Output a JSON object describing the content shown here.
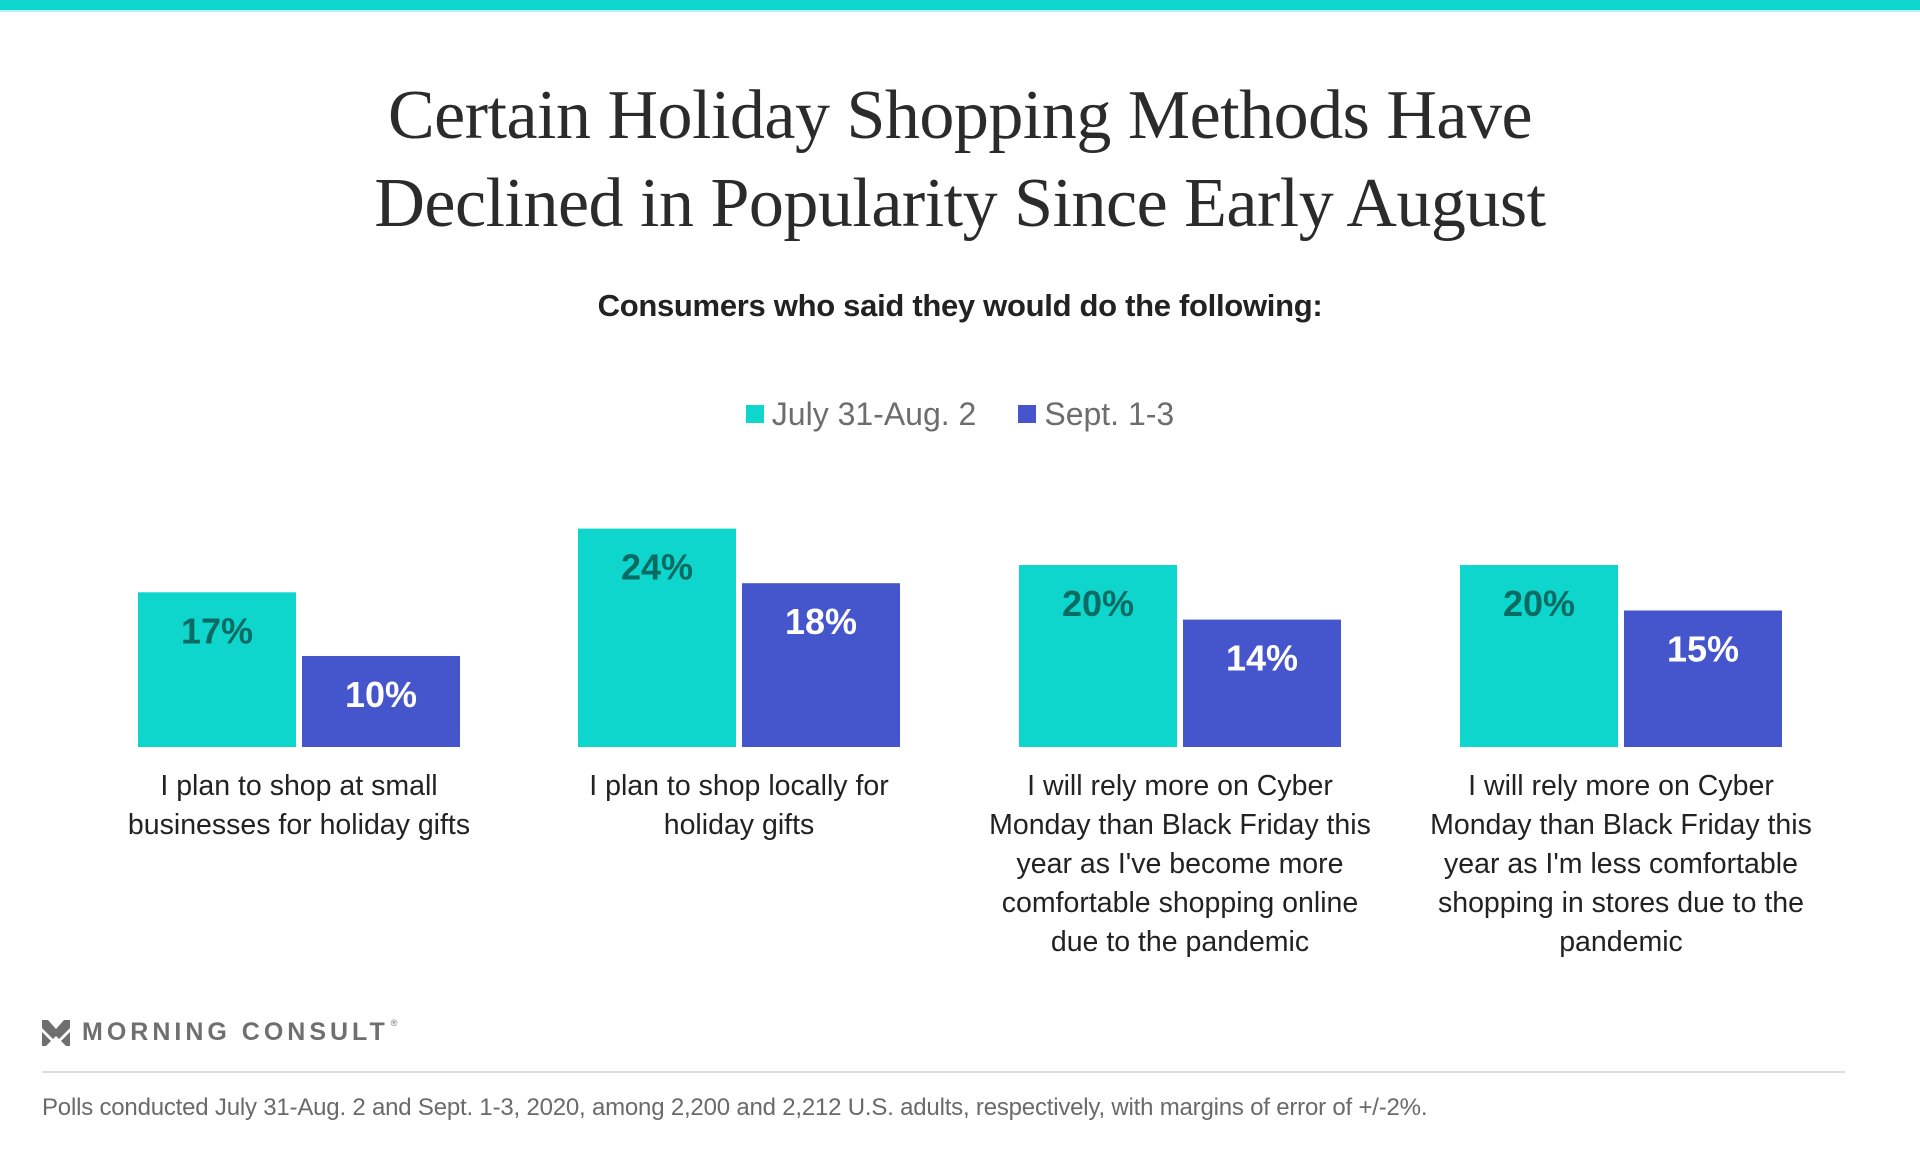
{
  "colors": {
    "accent_top_bar": "#0fd6cc",
    "series_1": "#0fd6cc",
    "series_2": "#4556cc",
    "label_on_series_1": "#0a6b63",
    "label_on_series_2": "#ffffff"
  },
  "header": {
    "title_line_1": "Certain Holiday Shopping Methods Have",
    "title_line_2": "Declined in Popularity Since Early August",
    "subtitle": "Consumers who said they would do the following:"
  },
  "legend": [
    {
      "label": "July 31-Aug. 2",
      "color": "#0fd6cc"
    },
    {
      "label": "Sept. 1-3",
      "color": "#4556cc"
    }
  ],
  "chart_data": {
    "type": "bar",
    "title": "Certain Holiday Shopping Methods Have Declined in Popularity Since Early August",
    "subtitle": "Consumers who said they would do the following:",
    "xlabel": "",
    "ylabel": "",
    "ylim": [
      0,
      24
    ],
    "grid": false,
    "legend_position": "top-center",
    "unit": "%",
    "categories": [
      [
        "I plan to shop at small",
        "businesses for holiday gifts"
      ],
      [
        "I plan to shop locally for",
        "holiday gifts"
      ],
      [
        "I will rely more on Cyber",
        "Monday than Black Friday this",
        "year as I've become more",
        "comfortable shopping online",
        "due to the pandemic"
      ],
      [
        "I will rely more on Cyber",
        "Monday than Black Friday this",
        "year as I'm less comfortable",
        "shopping in stores due to the",
        "pandemic"
      ]
    ],
    "series": [
      {
        "name": "July 31-Aug. 2",
        "values": [
          17,
          24,
          20,
          20
        ],
        "labels": [
          "17%",
          "24%",
          "20%",
          "20%"
        ]
      },
      {
        "name": "Sept. 1-3",
        "values": [
          10,
          18,
          14,
          15
        ],
        "labels": [
          "10%",
          "18%",
          "14%",
          "15%"
        ]
      }
    ]
  },
  "branding": {
    "logo_text": "MORNING CONSULT",
    "registered_mark": "®"
  },
  "footer": {
    "note": "Polls conducted July 31-Aug. 2 and Sept. 1-3, 2020, among 2,200 and 2,212 U.S. adults, respectively, with margins of error of +/-2%."
  }
}
